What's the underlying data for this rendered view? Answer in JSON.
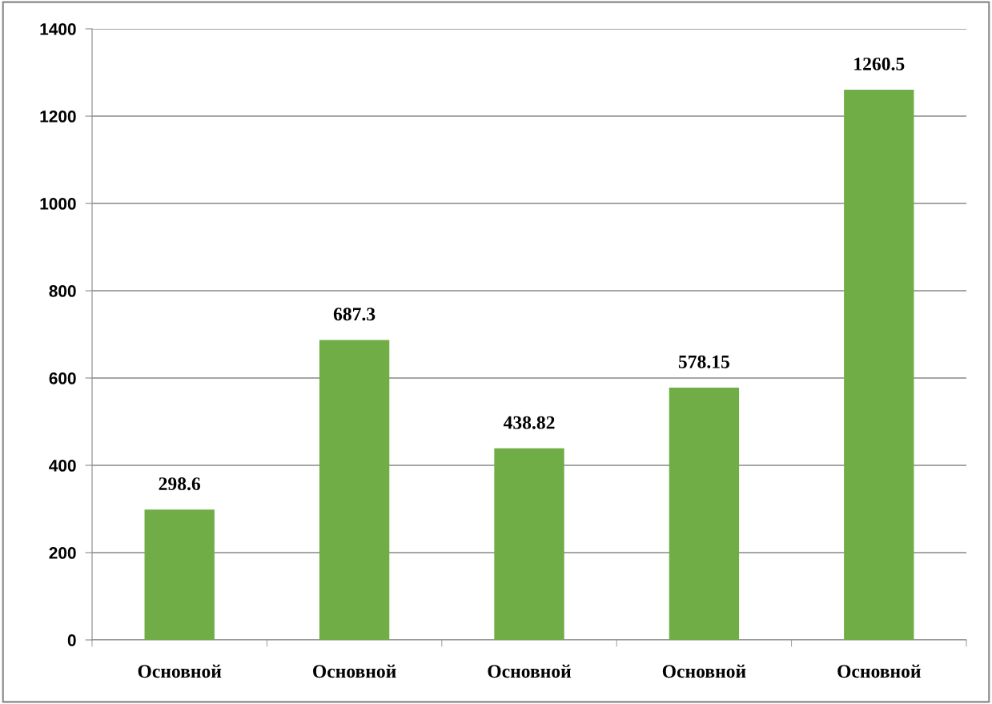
{
  "chart_data": {
    "type": "bar",
    "categories": [
      "Основной",
      "Основной",
      "Основной",
      "Основной",
      "Основной"
    ],
    "values": [
      298.6,
      687.3,
      438.82,
      578.15,
      1260.5
    ],
    "color": "#70ad47",
    "ylim": [
      0,
      1400
    ],
    "yticks": [
      0,
      200,
      400,
      600,
      800,
      1000,
      1200,
      1400
    ],
    "grid": "y",
    "data_labels": true
  }
}
